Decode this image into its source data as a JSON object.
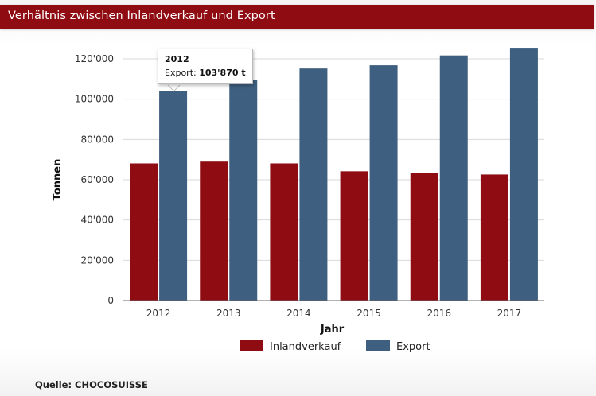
{
  "header": {
    "title": "Verhältnis zwischen Inlandverkauf und Export"
  },
  "footer": {
    "source": "Quelle: CHOCOSUISSE"
  },
  "colors": {
    "inland": "#8e0c12",
    "export": "#3f5f80",
    "header": "#8e0c12"
  },
  "tooltip": {
    "year": "2012",
    "label": "Export:",
    "value": "103'870 t"
  },
  "chart_data": {
    "type": "bar",
    "title": "Verhältnis zwischen Inlandverkauf und Export",
    "xlabel": "Jahr",
    "ylabel": "Tonnen",
    "categories": [
      "2012",
      "2013",
      "2014",
      "2015",
      "2016",
      "2017"
    ],
    "series": [
      {
        "name": "Inlandverkauf",
        "values": [
          68100,
          69000,
          68100,
          64200,
          63200,
          62600
        ]
      },
      {
        "name": "Export",
        "values": [
          103870,
          109500,
          115200,
          116800,
          121700,
          125500
        ]
      }
    ],
    "ylim": [
      0,
      120000
    ],
    "yticks": [
      0,
      20000,
      40000,
      60000,
      80000,
      100000,
      120000
    ],
    "ytick_labels": [
      "0",
      "20'000",
      "40'000",
      "60'000",
      "80'000",
      "100'000",
      "120'000"
    ],
    "grid": true,
    "legend": "bottom-center"
  }
}
